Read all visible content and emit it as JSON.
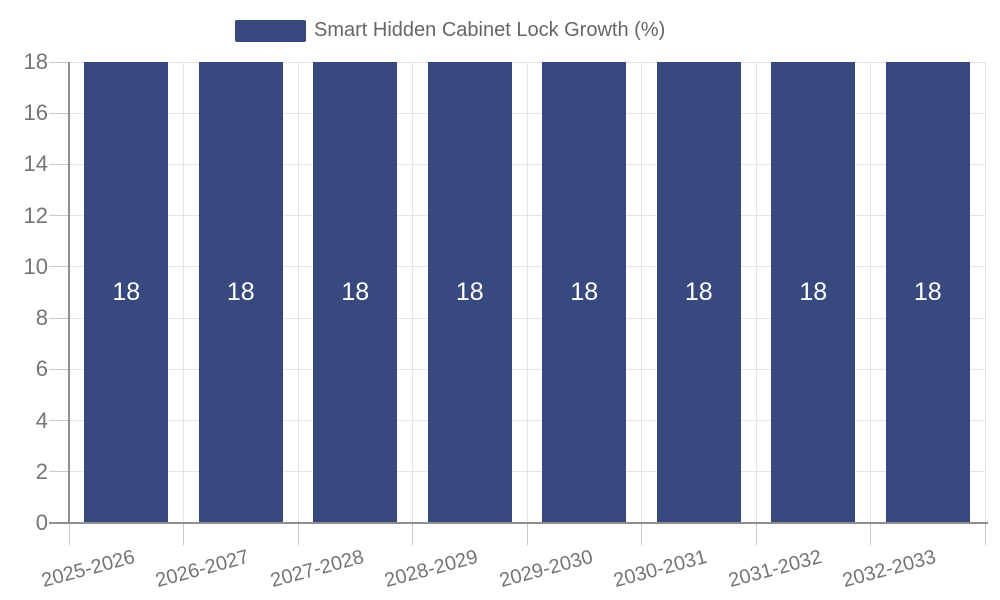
{
  "chart_data": {
    "type": "bar",
    "title": "Smart Hidden Cabinet Lock Growth (%)",
    "legend": [
      "Smart Hidden Cabinet Lock Growth (%)"
    ],
    "legend_position": "top-center",
    "categories": [
      "2025-2026",
      "2026-2027",
      "2027-2028",
      "2028-2029",
      "2029-2030",
      "2030-2031",
      "2031-2032",
      "2032-2033"
    ],
    "values": [
      18,
      18,
      18,
      18,
      18,
      18,
      18,
      18
    ],
    "value_labels": [
      "18",
      "18",
      "18",
      "18",
      "18",
      "18",
      "18",
      "18"
    ],
    "xlabel": "",
    "ylabel": "",
    "ylim": [
      0,
      18
    ],
    "yticks": [
      0,
      2,
      4,
      6,
      8,
      10,
      12,
      14,
      16,
      18
    ],
    "grid": true,
    "x_label_rotation_deg": -15,
    "bar_color": "#37497e",
    "value_label_color": "#ffffff",
    "grid_color": "#e4e4e4",
    "tick_color": "#c9c9c9",
    "axis_line_color": "#8f8f8f",
    "axis_label_color": "#757575",
    "legend_text_color": "#666666",
    "background_color": "#ffffff"
  }
}
